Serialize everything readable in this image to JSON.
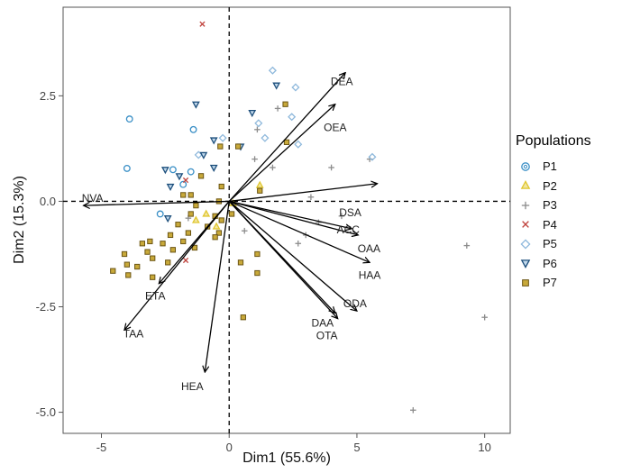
{
  "chart_data": {
    "type": "scatter",
    "title": "",
    "xlabel": "Dim1 (55.6%)",
    "ylabel": "Dim2 (15.3%)",
    "xlim": [
      -6.5,
      11.0
    ],
    "ylim": [
      -5.5,
      4.6
    ],
    "xticks": [
      -5,
      0,
      5,
      10
    ],
    "yticks": [
      -5.0,
      -2.5,
      0.0,
      2.5
    ],
    "ytick_labels": [
      "-5.0",
      "-2.5",
      "0.0",
      "2.5"
    ],
    "xtick_labels": [
      "-5",
      "0",
      "5",
      "10"
    ],
    "grid": false,
    "legend_title": "Populations",
    "legend_position": "right",
    "vectors": [
      {
        "label": "DEA",
        "x": 4.55,
        "y": 3.05
      },
      {
        "label": "OEA",
        "x": 4.15,
        "y": 2.3
      },
      {
        "label": "DSA",
        "x": 5.8,
        "y": 0.42
      },
      {
        "label": "NVA",
        "x": -5.7,
        "y": -0.1
      },
      {
        "label": "ACC",
        "x": 4.8,
        "y": -0.65
      },
      {
        "label": "OAA",
        "x": 5.05,
        "y": -0.8
      },
      {
        "label": "HAA",
        "x": 5.5,
        "y": -1.45
      },
      {
        "label": "ETA",
        "x": -2.75,
        "y": -1.95
      },
      {
        "label": "DAA",
        "x": 4.15,
        "y": -2.65
      },
      {
        "label": "ODA",
        "x": 5.0,
        "y": -2.6
      },
      {
        "label": "OTA",
        "x": 4.25,
        "y": -2.78
      },
      {
        "label": "TAA",
        "x": -4.1,
        "y": -3.05
      },
      {
        "label": "HEA",
        "x": -0.95,
        "y": -4.05
      }
    ],
    "series": [
      {
        "name": "P1",
        "marker": "circle",
        "color": "#3a8fc6",
        "points": [
          [
            -4.0,
            0.78
          ],
          [
            -3.9,
            1.95
          ],
          [
            -2.2,
            0.75
          ],
          [
            -1.5,
            0.7
          ],
          [
            -2.7,
            -0.3
          ],
          [
            -1.4,
            1.7
          ],
          [
            -1.8,
            0.4
          ]
        ]
      },
      {
        "name": "P2",
        "marker": "triangle",
        "color": "#e0c62d",
        "points": [
          [
            1.2,
            0.38
          ],
          [
            -0.9,
            -0.3
          ],
          [
            -0.5,
            -0.6
          ],
          [
            0.15,
            -0.05
          ],
          [
            -1.3,
            -0.45
          ]
        ]
      },
      {
        "name": "P3",
        "marker": "plus",
        "color": "#8c8c8c",
        "points": [
          [
            1.1,
            1.7
          ],
          [
            1.9,
            2.2
          ],
          [
            4.0,
            0.8
          ],
          [
            3.2,
            0.1
          ],
          [
            1.0,
            1.0
          ],
          [
            3.5,
            -0.5
          ],
          [
            5.5,
            1.0
          ],
          [
            2.7,
            -1.0
          ],
          [
            3.0,
            -0.8
          ],
          [
            0.6,
            -0.7
          ],
          [
            1.7,
            0.8
          ],
          [
            4.4,
            -0.35
          ],
          [
            9.3,
            -1.05
          ],
          [
            10.0,
            -2.75
          ],
          [
            7.2,
            -4.95
          ],
          [
            -1.6,
            -0.4
          ]
        ]
      },
      {
        "name": "P4",
        "marker": "x",
        "color": "#c0433d",
        "points": [
          [
            -1.05,
            4.2
          ],
          [
            -1.7,
            0.5
          ],
          [
            -1.7,
            -1.4
          ]
        ]
      },
      {
        "name": "P5",
        "marker": "diamond",
        "color": "#8fb9dc",
        "points": [
          [
            1.7,
            3.1
          ],
          [
            2.6,
            2.7
          ],
          [
            1.15,
            1.85
          ],
          [
            2.7,
            1.35
          ],
          [
            5.6,
            1.05
          ],
          [
            1.4,
            1.5
          ],
          [
            -1.2,
            1.1
          ],
          [
            2.45,
            2.0
          ],
          [
            -0.25,
            1.5
          ]
        ]
      },
      {
        "name": "P6",
        "marker": "triangle-down",
        "color": "#1d4f7c",
        "points": [
          [
            1.85,
            2.75
          ],
          [
            -1.3,
            2.3
          ],
          [
            0.9,
            2.1
          ],
          [
            0.45,
            1.3
          ],
          [
            -2.5,
            0.75
          ],
          [
            -0.6,
            0.8
          ],
          [
            -1.0,
            1.1
          ],
          [
            -0.6,
            1.45
          ],
          [
            -2.3,
            0.35
          ],
          [
            -2.4,
            -0.4
          ],
          [
            -1.95,
            0.6
          ]
        ]
      },
      {
        "name": "P7",
        "marker": "square",
        "color": "#c8a93a",
        "points": [
          [
            2.2,
            2.3
          ],
          [
            2.25,
            1.4
          ],
          [
            0.35,
            1.3
          ],
          [
            1.2,
            0.25
          ],
          [
            -1.1,
            0.6
          ],
          [
            -0.3,
            0.35
          ],
          [
            -0.4,
            0.0
          ],
          [
            -1.8,
            0.15
          ],
          [
            -1.5,
            -0.3
          ],
          [
            -1.3,
            -0.1
          ],
          [
            -0.85,
            -0.6
          ],
          [
            -0.3,
            -0.45
          ],
          [
            -2.0,
            -0.55
          ],
          [
            -1.6,
            -0.75
          ],
          [
            -1.8,
            -0.95
          ],
          [
            -2.3,
            -0.8
          ],
          [
            -2.6,
            -1.0
          ],
          [
            -3.1,
            -0.95
          ],
          [
            -3.2,
            -1.2
          ],
          [
            -3.0,
            -1.35
          ],
          [
            -3.4,
            -1.0
          ],
          [
            -4.1,
            -1.25
          ],
          [
            -4.0,
            -1.5
          ],
          [
            -3.6,
            -1.55
          ],
          [
            -3.95,
            -1.75
          ],
          [
            -4.55,
            -1.65
          ],
          [
            -3.0,
            -1.8
          ],
          [
            -2.2,
            -1.15
          ],
          [
            -2.4,
            -1.45
          ],
          [
            -0.4,
            -0.75
          ],
          [
            0.1,
            -0.3
          ],
          [
            0.45,
            -1.45
          ],
          [
            1.1,
            -1.7
          ],
          [
            0.55,
            -2.75
          ],
          [
            1.1,
            -1.25
          ],
          [
            -0.55,
            -0.85
          ],
          [
            -1.35,
            -1.1
          ],
          [
            -0.55,
            -0.35
          ],
          [
            -1.5,
            0.15
          ],
          [
            -0.35,
            1.3
          ]
        ]
      }
    ]
  }
}
